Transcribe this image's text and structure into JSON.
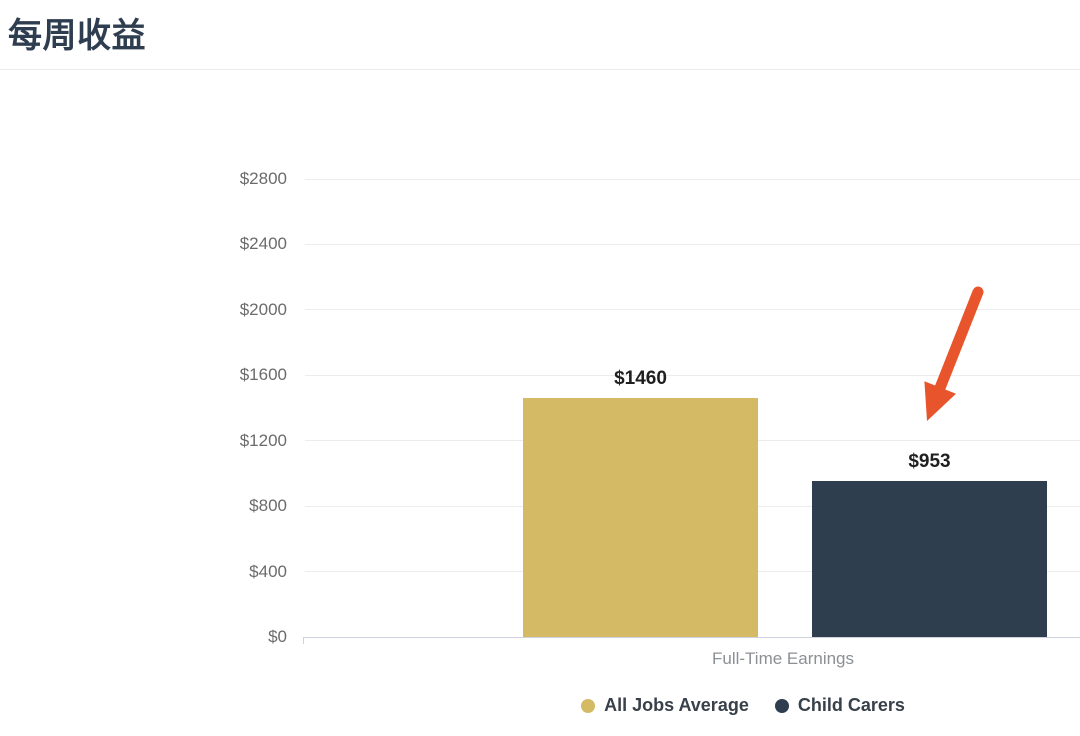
{
  "page": {
    "title": "每周收益"
  },
  "chart_data": {
    "type": "bar",
    "title": "每周收益",
    "categories": [
      "Full-Time Earnings"
    ],
    "series": [
      {
        "name": "All Jobs Average",
        "color": "#d4ba64",
        "values": [
          1460
        ],
        "value_labels": [
          "$1460"
        ]
      },
      {
        "name": "Child Carers",
        "color": "#2e3e4f",
        "values": [
          953
        ],
        "value_labels": [
          "$953"
        ]
      }
    ],
    "xlabel": "",
    "ylabel": "",
    "ylim": [
      0,
      2800
    ],
    "ytick_step": 400,
    "ytick_labels": [
      "$0",
      "$400",
      "$800",
      "$1200",
      "$1600",
      "$2000",
      "$2400",
      "$2800"
    ],
    "grid": true,
    "legend_position": "bottom",
    "value_prefix": "$"
  },
  "annotation": {
    "arrow_color": "#e8542b",
    "arrow_points_at": "Child Carers bar"
  }
}
